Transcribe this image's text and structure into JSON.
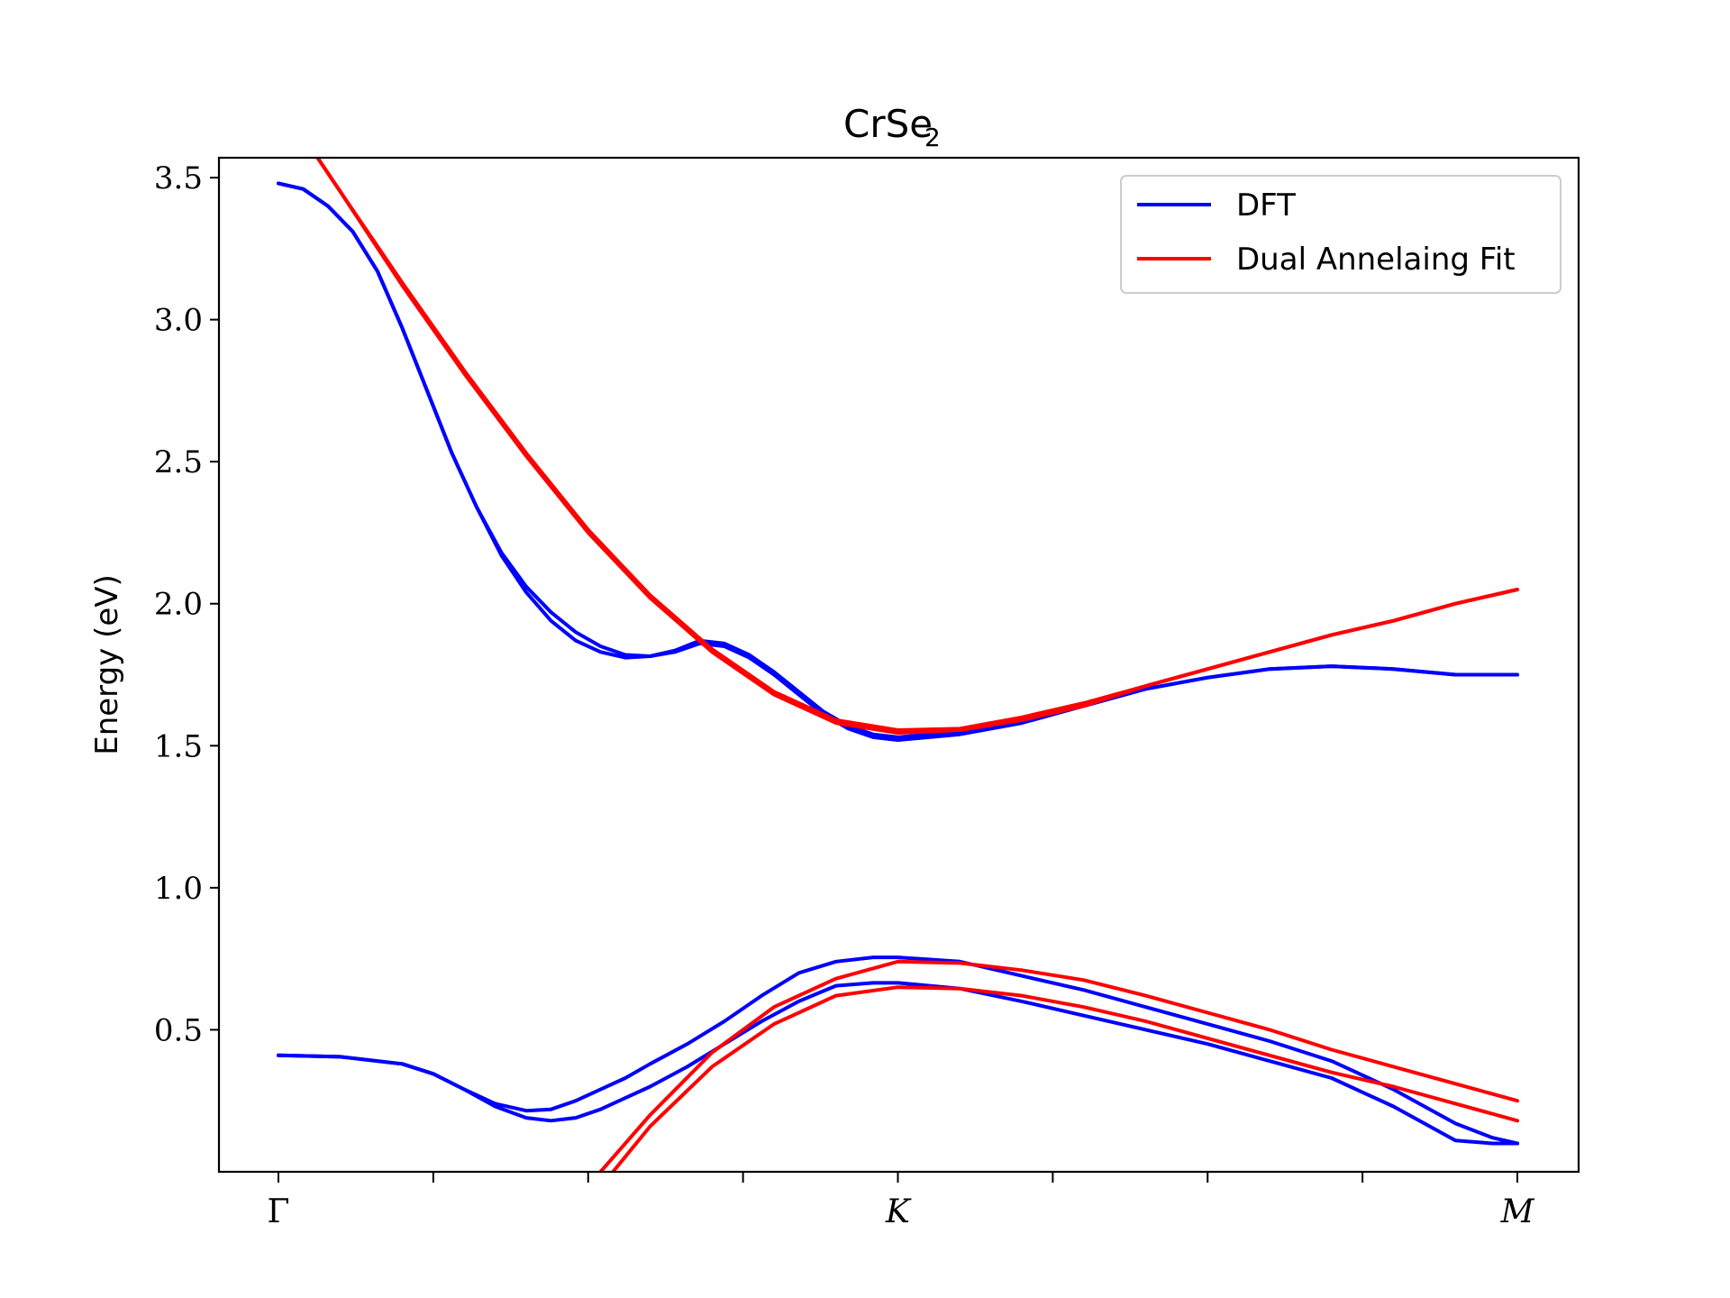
{
  "chart_data": {
    "type": "line",
    "title": "CrSe",
    "title_subscript": "2",
    "ylabel": "Energy (eV)",
    "xlabel": "",
    "xlim": [
      0,
      1.08
    ],
    "ylim": [
      0.0,
      3.57
    ],
    "yticks": [
      0.5,
      1.0,
      1.5,
      2.0,
      2.5,
      3.0,
      3.5
    ],
    "ytick_labels": [
      "0.5",
      "1.0",
      "1.5",
      "2.0",
      "2.5",
      "3.0",
      "3.5"
    ],
    "xticks": [
      0.0,
      0.125,
      0.25,
      0.375,
      0.5,
      0.625,
      0.75,
      0.875,
      1.0
    ],
    "xtick_labels": [
      "Γ",
      "",
      "",
      "",
      "K",
      "",
      "",
      "",
      "M"
    ],
    "grid": false,
    "legend_position": "top-right",
    "legend": [
      {
        "label": "DFT",
        "color": "#0000ff"
      },
      {
        "label": "Dual Annelaing Fit",
        "color": "#ff0000"
      }
    ],
    "series": [
      {
        "group": "DFT",
        "color": "#0000ff",
        "x": [
          0.0,
          0.02,
          0.04,
          0.06,
          0.08,
          0.1,
          0.12,
          0.14,
          0.16,
          0.18,
          0.2,
          0.22,
          0.24,
          0.26,
          0.28,
          0.3,
          0.32,
          0.34,
          0.36,
          0.38,
          0.4,
          0.42,
          0.44,
          0.46,
          0.48,
          0.5,
          0.55,
          0.6,
          0.65,
          0.7,
          0.75,
          0.8,
          0.85,
          0.9,
          0.95,
          1.0
        ],
        "y": [
          3.48,
          3.46,
          3.4,
          3.31,
          3.17,
          2.97,
          2.75,
          2.53,
          2.34,
          2.17,
          2.04,
          1.94,
          1.87,
          1.83,
          1.81,
          1.815,
          1.83,
          1.86,
          1.85,
          1.81,
          1.75,
          1.68,
          1.61,
          1.56,
          1.53,
          1.52,
          1.54,
          1.58,
          1.64,
          1.7,
          1.74,
          1.77,
          1.78,
          1.77,
          1.75,
          1.75
        ]
      },
      {
        "group": "DFT",
        "color": "#0000ff",
        "x": [
          0.0,
          0.02,
          0.04,
          0.06,
          0.08,
          0.1,
          0.12,
          0.14,
          0.16,
          0.18,
          0.2,
          0.22,
          0.24,
          0.26,
          0.28,
          0.3,
          0.32,
          0.34,
          0.36,
          0.38,
          0.4,
          0.42,
          0.44,
          0.46,
          0.48,
          0.5,
          0.55,
          0.6,
          0.65,
          0.7,
          0.75,
          0.8,
          0.85,
          0.9,
          0.95,
          1.0
        ],
        "y": [
          3.48,
          3.46,
          3.4,
          3.31,
          3.17,
          2.97,
          2.75,
          2.53,
          2.34,
          2.18,
          2.06,
          1.97,
          1.9,
          1.85,
          1.82,
          1.815,
          1.835,
          1.87,
          1.86,
          1.82,
          1.76,
          1.69,
          1.62,
          1.57,
          1.54,
          1.53,
          1.55,
          1.59,
          1.64,
          1.7,
          1.74,
          1.77,
          1.78,
          1.77,
          1.75,
          1.75
        ]
      },
      {
        "group": "Dual Annelaing Fit",
        "color": "#ff0000",
        "x": [
          0.03,
          0.05,
          0.1,
          0.15,
          0.2,
          0.25,
          0.3,
          0.35,
          0.4,
          0.45,
          0.5,
          0.55,
          0.6,
          0.65,
          0.7,
          0.75,
          0.8,
          0.85,
          0.9,
          0.95,
          1.0
        ],
        "y": [
          3.58,
          3.45,
          3.12,
          2.81,
          2.52,
          2.25,
          2.02,
          1.83,
          1.68,
          1.58,
          1.545,
          1.555,
          1.59,
          1.64,
          1.71,
          1.77,
          1.83,
          1.89,
          1.94,
          2.0,
          2.05
        ]
      },
      {
        "group": "Dual Annelaing Fit",
        "color": "#ff0000",
        "x": [
          0.03,
          0.05,
          0.1,
          0.15,
          0.2,
          0.25,
          0.3,
          0.35,
          0.4,
          0.45,
          0.5,
          0.55,
          0.6,
          0.65,
          0.7,
          0.75,
          0.8,
          0.85,
          0.9,
          0.95,
          1.0
        ],
        "y": [
          3.58,
          3.45,
          3.13,
          2.82,
          2.53,
          2.26,
          2.03,
          1.84,
          1.69,
          1.59,
          1.555,
          1.56,
          1.6,
          1.65,
          1.71,
          1.77,
          1.83,
          1.89,
          1.94,
          2.0,
          2.05
        ]
      },
      {
        "group": "DFT",
        "color": "#0000ff",
        "x": [
          0.0,
          0.05,
          0.1,
          0.125,
          0.15,
          0.175,
          0.2,
          0.22,
          0.24,
          0.26,
          0.28,
          0.3,
          0.33,
          0.36,
          0.39,
          0.42,
          0.45,
          0.48,
          0.5,
          0.55,
          0.6,
          0.65,
          0.7,
          0.75,
          0.8,
          0.85,
          0.9,
          0.95,
          0.98,
          1.0
        ],
        "y": [
          0.41,
          0.405,
          0.38,
          0.345,
          0.29,
          0.23,
          0.19,
          0.18,
          0.19,
          0.22,
          0.26,
          0.3,
          0.37,
          0.45,
          0.53,
          0.6,
          0.655,
          0.665,
          0.665,
          0.645,
          0.6,
          0.55,
          0.5,
          0.45,
          0.39,
          0.33,
          0.23,
          0.11,
          0.1,
          0.1
        ]
      },
      {
        "group": "DFT",
        "color": "#0000ff",
        "x": [
          0.0,
          0.05,
          0.1,
          0.125,
          0.15,
          0.175,
          0.2,
          0.22,
          0.24,
          0.26,
          0.28,
          0.3,
          0.33,
          0.36,
          0.39,
          0.42,
          0.45,
          0.48,
          0.5,
          0.55,
          0.6,
          0.65,
          0.7,
          0.75,
          0.8,
          0.85,
          0.9,
          0.95,
          0.98,
          1.0
        ],
        "y": [
          0.41,
          0.405,
          0.38,
          0.345,
          0.29,
          0.24,
          0.215,
          0.22,
          0.25,
          0.29,
          0.33,
          0.38,
          0.45,
          0.53,
          0.62,
          0.7,
          0.74,
          0.755,
          0.755,
          0.74,
          0.69,
          0.64,
          0.58,
          0.52,
          0.46,
          0.39,
          0.29,
          0.17,
          0.12,
          0.1
        ]
      },
      {
        "group": "Dual Annelaing Fit",
        "color": "#ff0000",
        "x": [
          0.26,
          0.3,
          0.35,
          0.4,
          0.45,
          0.5,
          0.55,
          0.6,
          0.65,
          0.7,
          0.75,
          0.8,
          0.85,
          0.9,
          0.95,
          1.0
        ],
        "y": [
          0.0,
          0.2,
          0.42,
          0.58,
          0.68,
          0.74,
          0.735,
          0.71,
          0.675,
          0.62,
          0.56,
          0.5,
          0.43,
          0.37,
          0.31,
          0.25
        ]
      },
      {
        "group": "Dual Annelaing Fit",
        "color": "#ff0000",
        "x": [
          0.27,
          0.3,
          0.35,
          0.4,
          0.45,
          0.5,
          0.55,
          0.6,
          0.65,
          0.7,
          0.75,
          0.8,
          0.85,
          0.9,
          0.95,
          1.0
        ],
        "y": [
          0.0,
          0.16,
          0.37,
          0.52,
          0.62,
          0.65,
          0.645,
          0.62,
          0.58,
          0.53,
          0.47,
          0.41,
          0.35,
          0.3,
          0.24,
          0.18
        ]
      }
    ]
  }
}
